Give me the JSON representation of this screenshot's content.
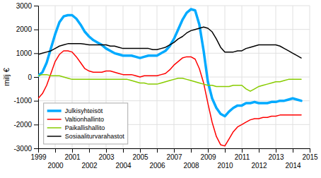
{
  "chart_data": {
    "type": "line",
    "y_label": "milj €",
    "xlim": [
      1999,
      2015
    ],
    "ylim": [
      -3000,
      3000
    ],
    "xticks": [
      1999,
      2000,
      2001,
      2002,
      2003,
      2004,
      2005,
      2006,
      2007,
      2008,
      2009,
      2010,
      2011,
      2012,
      2013,
      2014,
      2015
    ],
    "yticks": [
      -3000,
      -2000,
      -1000,
      0,
      1000,
      2000,
      3000
    ],
    "grid": true,
    "legend": "lower left",
    "x": [
      1999,
      1999.25,
      1999.5,
      1999.75,
      2000,
      2000.25,
      2000.5,
      2000.75,
      2001,
      2001.25,
      2001.5,
      2001.75,
      2002,
      2002.25,
      2002.5,
      2002.75,
      2003,
      2003.25,
      2003.5,
      2003.75,
      2004,
      2004.25,
      2004.5,
      2004.75,
      2005,
      2005.25,
      2005.5,
      2005.75,
      2006,
      2006.25,
      2006.5,
      2006.75,
      2007,
      2007.25,
      2007.5,
      2007.75,
      2008,
      2008.25,
      2008.5,
      2008.75,
      2009,
      2009.25,
      2009.5,
      2009.75,
      2010,
      2010.25,
      2010.5,
      2010.75,
      2011,
      2011.25,
      2011.5,
      2011.75,
      2012,
      2012.25,
      2012.5,
      2012.75,
      2013,
      2013.25,
      2013.5,
      2013.75,
      2014,
      2014.25,
      2014.5
    ],
    "series": [
      {
        "name": "Julkisyhteisöt",
        "color": "#00aaff",
        "values": [
          50,
          200,
          600,
          1200,
          1800,
          2300,
          2550,
          2600,
          2600,
          2450,
          2200,
          1900,
          1700,
          1550,
          1450,
          1350,
          1200,
          1100,
          1000,
          950,
          900,
          900,
          900,
          850,
          800,
          850,
          900,
          900,
          900,
          1000,
          1100,
          1300,
          1600,
          2000,
          2400,
          2700,
          2850,
          2800,
          2200,
          1100,
          -200,
          -900,
          -1300,
          -1550,
          -1650,
          -1450,
          -1300,
          -1200,
          -1200,
          -1100,
          -1100,
          -1050,
          -1100,
          -1100,
          -1100,
          -1050,
          -1050,
          -1000,
          -1000,
          -950,
          -900,
          -950,
          -1000
        ]
      },
      {
        "name": "Valtionhallinto",
        "color": "#ff0000",
        "values": [
          -900,
          -700,
          -350,
          150,
          650,
          950,
          1100,
          1100,
          1050,
          850,
          600,
          350,
          250,
          200,
          200,
          200,
          250,
          250,
          200,
          150,
          100,
          100,
          100,
          50,
          0,
          50,
          50,
          50,
          50,
          100,
          150,
          300,
          500,
          650,
          800,
          850,
          850,
          750,
          350,
          -250,
          -1100,
          -1900,
          -2500,
          -2850,
          -2900,
          -2600,
          -2300,
          -2100,
          -2000,
          -1900,
          -1800,
          -1750,
          -1750,
          -1700,
          -1700,
          -1650,
          -1650,
          -1600,
          -1600,
          -1600,
          -1600,
          -1600,
          -1600
        ]
      },
      {
        "name": "Paikallishallito",
        "color": "#88cc00",
        "values": [
          50,
          100,
          100,
          50,
          50,
          50,
          0,
          -50,
          -100,
          -100,
          -100,
          -100,
          -100,
          -100,
          -100,
          -100,
          -100,
          -100,
          -100,
          -100,
          -100,
          -100,
          -150,
          -200,
          -250,
          -250,
          -300,
          -300,
          -300,
          -250,
          -200,
          -150,
          -100,
          -50,
          -50,
          -100,
          -150,
          -200,
          -250,
          -300,
          -350,
          -350,
          -400,
          -400,
          -400,
          -400,
          -350,
          -350,
          -350,
          -500,
          -600,
          -500,
          -400,
          -350,
          -300,
          -250,
          -200,
          -200,
          -150,
          -100,
          -100,
          -100,
          -100
        ]
      },
      {
        "name": "Sosiaaliturvarahastot",
        "color": "#000000",
        "values": [
          950,
          1000,
          1050,
          1100,
          1200,
          1300,
          1350,
          1400,
          1400,
          1400,
          1400,
          1380,
          1350,
          1350,
          1350,
          1350,
          1350,
          1300,
          1300,
          1250,
          1200,
          1200,
          1200,
          1200,
          1200,
          1200,
          1200,
          1150,
          1150,
          1200,
          1250,
          1350,
          1450,
          1600,
          1700,
          1850,
          1950,
          2000,
          2050,
          2100,
          2050,
          1900,
          1600,
          1250,
          1050,
          1050,
          1050,
          1100,
          1100,
          1200,
          1250,
          1300,
          1350,
          1350,
          1350,
          1350,
          1350,
          1300,
          1200,
          1100,
          1000,
          900,
          800
        ]
      }
    ]
  }
}
